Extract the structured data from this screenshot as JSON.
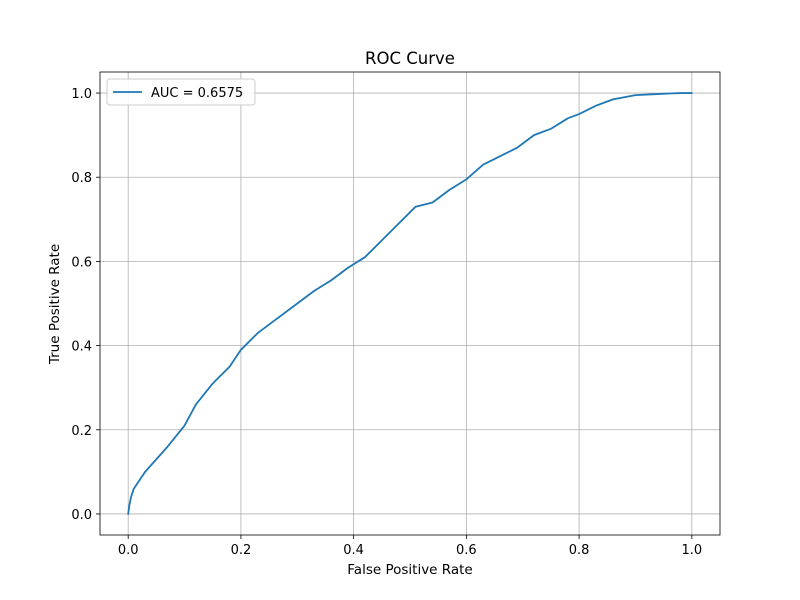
{
  "chart_data": {
    "type": "line",
    "title": "ROC Curve",
    "xlabel": "False Positive Rate",
    "ylabel": "True Positive Rate",
    "xlim": [
      -0.05,
      1.05
    ],
    "ylim": [
      -0.05,
      1.05
    ],
    "xticks": [
      0.0,
      0.2,
      0.4,
      0.6,
      0.8,
      1.0
    ],
    "yticks": [
      0.0,
      0.2,
      0.4,
      0.6,
      0.8,
      1.0
    ],
    "xtick_labels": [
      "0.0",
      "0.2",
      "0.4",
      "0.6",
      "0.8",
      "1.0"
    ],
    "ytick_labels": [
      "0.0",
      "0.2",
      "0.4",
      "0.6",
      "0.8",
      "1.0"
    ],
    "grid": true,
    "legend_position": "top-left",
    "series": [
      {
        "name": "AUC = 0.6575",
        "color": "#1f77b4",
        "x": [
          0.0,
          0.002,
          0.005,
          0.01,
          0.02,
          0.03,
          0.05,
          0.07,
          0.1,
          0.12,
          0.15,
          0.18,
          0.2,
          0.23,
          0.26,
          0.3,
          0.33,
          0.36,
          0.39,
          0.42,
          0.45,
          0.48,
          0.51,
          0.54,
          0.57,
          0.6,
          0.63,
          0.66,
          0.69,
          0.72,
          0.75,
          0.78,
          0.8,
          0.83,
          0.86,
          0.88,
          0.9,
          0.93,
          0.96,
          0.98,
          1.0
        ],
        "y": [
          0.0,
          0.02,
          0.04,
          0.06,
          0.08,
          0.1,
          0.13,
          0.16,
          0.21,
          0.26,
          0.31,
          0.35,
          0.39,
          0.43,
          0.46,
          0.5,
          0.53,
          0.555,
          0.585,
          0.61,
          0.65,
          0.69,
          0.73,
          0.74,
          0.77,
          0.795,
          0.83,
          0.85,
          0.87,
          0.9,
          0.915,
          0.94,
          0.95,
          0.97,
          0.985,
          0.99,
          0.995,
          0.997,
          0.999,
          1.0,
          1.0
        ]
      }
    ]
  }
}
